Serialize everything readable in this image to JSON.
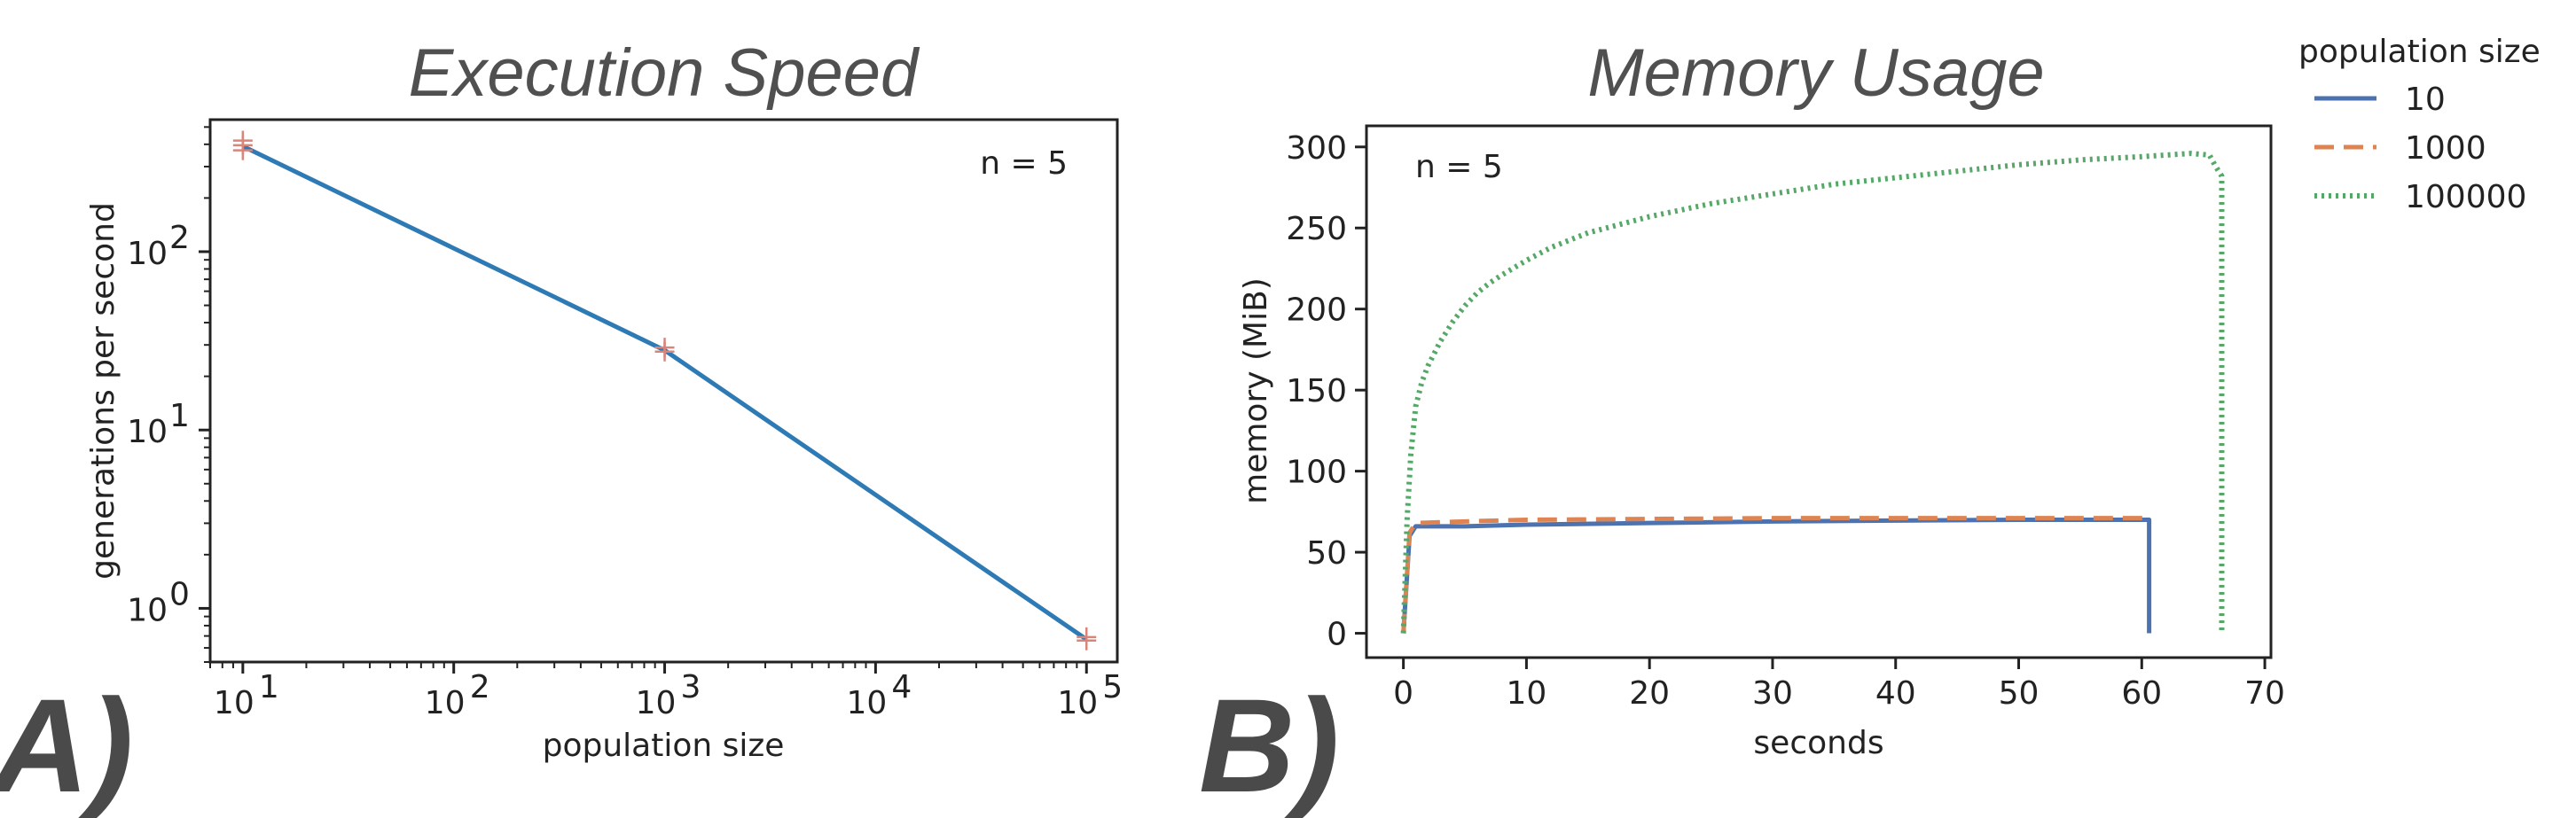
{
  "panels": {
    "a": {
      "letter": "A)"
    },
    "b": {
      "letter": "B)"
    }
  },
  "chart_data": [
    {
      "type": "line",
      "title": "Execution Speed",
      "xlabel": "population size",
      "ylabel": "generations per second",
      "xscale": "log",
      "yscale": "log",
      "annotation": "n = 5",
      "xticks": [
        {
          "base": "10",
          "exp": "1",
          "value": 10
        },
        {
          "base": "10",
          "exp": "2",
          "value": 100
        },
        {
          "base": "10",
          "exp": "3",
          "value": 1000
        },
        {
          "base": "10",
          "exp": "4",
          "value": 10000
        },
        {
          "base": "10",
          "exp": "5",
          "value": 100000
        }
      ],
      "yticks": [
        {
          "base": "10",
          "exp": "0",
          "value": 1
        },
        {
          "base": "10",
          "exp": "1",
          "value": 10
        },
        {
          "base": "10",
          "exp": "2",
          "value": 100
        }
      ],
      "xlim": [
        7,
        140000
      ],
      "ylim": [
        0.5,
        550
      ],
      "series": [
        {
          "x": [
            10,
            1000,
            100000
          ],
          "y": [
            390,
            28,
            0.67
          ],
          "color": "#2e7ab5"
        }
      ],
      "replicates": {
        "marker": "+",
        "color": "#d9857a",
        "points": [
          {
            "x": 10,
            "y": 420
          },
          {
            "x": 10,
            "y": 395
          },
          {
            "x": 10,
            "y": 370
          },
          {
            "x": 1000,
            "y": 29
          },
          {
            "x": 1000,
            "y": 27.5
          },
          {
            "x": 100000,
            "y": 0.69
          },
          {
            "x": 100000,
            "y": 0.66
          }
        ]
      }
    },
    {
      "type": "line",
      "title": "Memory Usage",
      "xlabel": "seconds",
      "ylabel": "memory (MiB)",
      "annotation": "n = 5",
      "xlim": [
        -3,
        70.5
      ],
      "ylim": [
        -15,
        313
      ],
      "xticks": [
        0,
        10,
        20,
        30,
        40,
        50,
        60,
        70
      ],
      "yticks": [
        0,
        50,
        100,
        150,
        200,
        250,
        300
      ],
      "legend": {
        "title": "population size",
        "position": "outside-right"
      },
      "series": [
        {
          "name": "10",
          "style": "solid",
          "color": "#4c72b0",
          "x": [
            0,
            0.5,
            1,
            5,
            10,
            20,
            30,
            40,
            50,
            60,
            60.6,
            60.6
          ],
          "y": [
            0,
            60,
            66,
            66,
            67,
            68,
            69,
            69.5,
            70,
            70,
            70,
            0
          ]
        },
        {
          "name": "1000",
          "style": "dashed",
          "color": "#dd8452",
          "x": [
            0,
            0.5,
            1,
            5,
            10,
            20,
            30,
            40,
            50,
            60,
            60.3
          ],
          "y": [
            0,
            62,
            68,
            69,
            70,
            70.5,
            71,
            71,
            71,
            71,
            71
          ]
        },
        {
          "name": "100000",
          "style": "dotted",
          "color": "#55a868",
          "x": [
            0,
            0.3,
            0.6,
            1,
            1.5,
            2,
            3,
            4,
            5,
            6,
            7,
            8,
            10,
            12,
            15,
            20,
            25,
            30,
            35,
            40,
            45,
            50,
            55,
            60,
            64,
            65.5,
            66,
            66.5,
            66.5
          ],
          "y": [
            0,
            70,
            110,
            140,
            155,
            165,
            180,
            192,
            202,
            210,
            216,
            221,
            230,
            238,
            247,
            257,
            265,
            271,
            277,
            281,
            285,
            289,
            292,
            294,
            296,
            295,
            288,
            282,
            0
          ]
        }
      ]
    }
  ]
}
